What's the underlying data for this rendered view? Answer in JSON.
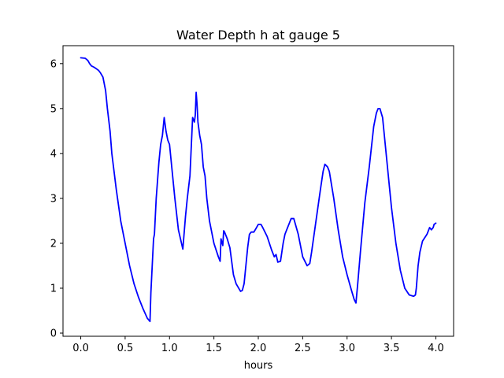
{
  "chart_data": {
    "type": "line",
    "title": "Water Depth h at gauge 5",
    "xlabel": "hours",
    "ylabel": "",
    "xlim": [
      -0.2,
      4.2
    ],
    "ylim": [
      -0.07,
      6.4
    ],
    "xticks": [
      0.0,
      0.5,
      1.0,
      1.5,
      2.0,
      2.5,
      3.0,
      3.5,
      4.0
    ],
    "xtick_labels": [
      "0.0",
      "0.5",
      "1.0",
      "1.5",
      "2.0",
      "2.5",
      "3.0",
      "3.5",
      "4.0"
    ],
    "yticks": [
      0,
      1,
      2,
      3,
      4,
      5,
      6
    ],
    "ytick_labels": [
      "0",
      "1",
      "2",
      "3",
      "4",
      "5",
      "6"
    ],
    "grid": false,
    "series": [
      {
        "color": "#0000ff",
        "x": [
          0.0,
          0.05,
          0.08,
          0.1,
          0.12,
          0.15,
          0.18,
          0.2,
          0.22,
          0.25,
          0.28,
          0.3,
          0.33,
          0.35,
          0.4,
          0.45,
          0.5,
          0.55,
          0.6,
          0.65,
          0.7,
          0.75,
          0.78,
          0.79,
          0.8,
          0.82,
          0.83,
          0.85,
          0.88,
          0.9,
          0.92,
          0.94,
          0.96,
          0.98,
          1.0,
          1.03,
          1.06,
          1.1,
          1.15,
          1.18,
          1.2,
          1.23,
          1.26,
          1.28,
          1.29,
          1.3,
          1.31,
          1.32,
          1.34,
          1.36,
          1.38,
          1.4,
          1.42,
          1.45,
          1.5,
          1.55,
          1.57,
          1.58,
          1.6,
          1.61,
          1.62,
          1.63,
          1.65,
          1.68,
          1.7,
          1.72,
          1.75,
          1.8,
          1.82,
          1.84,
          1.86,
          1.88,
          1.9,
          1.92,
          1.95,
          1.98,
          2.0,
          2.03,
          2.05,
          2.1,
          2.15,
          2.18,
          2.2,
          2.22,
          2.25,
          2.28,
          2.3,
          2.33,
          2.35,
          2.37,
          2.4,
          2.45,
          2.5,
          2.55,
          2.58,
          2.6,
          2.65,
          2.7,
          2.73,
          2.75,
          2.78,
          2.8,
          2.85,
          2.9,
          2.95,
          3.0,
          3.05,
          3.08,
          3.1,
          3.12,
          3.15,
          3.2,
          3.25,
          3.3,
          3.33,
          3.35,
          3.37,
          3.4,
          3.45,
          3.5,
          3.55,
          3.6,
          3.65,
          3.7,
          3.75,
          3.77,
          3.78,
          3.8,
          3.82,
          3.85,
          3.9,
          3.93,
          3.95,
          3.97,
          3.98,
          4.0
        ],
        "values": [
          6.13,
          6.12,
          6.07,
          6.0,
          5.95,
          5.92,
          5.88,
          5.85,
          5.8,
          5.7,
          5.4,
          5.0,
          4.5,
          4.0,
          3.2,
          2.5,
          2.0,
          1.5,
          1.1,
          0.8,
          0.55,
          0.33,
          0.26,
          0.9,
          1.3,
          2.1,
          2.2,
          3.0,
          3.8,
          4.2,
          4.4,
          4.8,
          4.5,
          4.3,
          4.2,
          3.6,
          3.0,
          2.3,
          1.87,
          2.6,
          3.0,
          3.5,
          4.8,
          4.7,
          4.85,
          5.36,
          5.1,
          4.7,
          4.4,
          4.2,
          3.7,
          3.5,
          3.0,
          2.5,
          2.0,
          1.7,
          1.6,
          2.1,
          1.95,
          2.28,
          2.25,
          2.2,
          2.1,
          1.9,
          1.6,
          1.3,
          1.1,
          0.93,
          0.95,
          1.1,
          1.5,
          1.9,
          2.2,
          2.25,
          2.25,
          2.35,
          2.42,
          2.42,
          2.35,
          2.15,
          1.85,
          1.7,
          1.75,
          1.58,
          1.6,
          2.0,
          2.2,
          2.35,
          2.45,
          2.55,
          2.55,
          2.2,
          1.7,
          1.5,
          1.55,
          1.8,
          2.5,
          3.2,
          3.6,
          3.76,
          3.7,
          3.6,
          3.0,
          2.3,
          1.7,
          1.3,
          0.95,
          0.75,
          0.67,
          1.1,
          1.8,
          2.9,
          3.7,
          4.6,
          4.9,
          5.0,
          5.0,
          4.8,
          3.8,
          2.8,
          2.0,
          1.4,
          1.0,
          0.85,
          0.82,
          0.85,
          1.0,
          1.5,
          1.8,
          2.05,
          2.2,
          2.35,
          2.3,
          2.35,
          2.42,
          2.45
        ]
      }
    ]
  }
}
